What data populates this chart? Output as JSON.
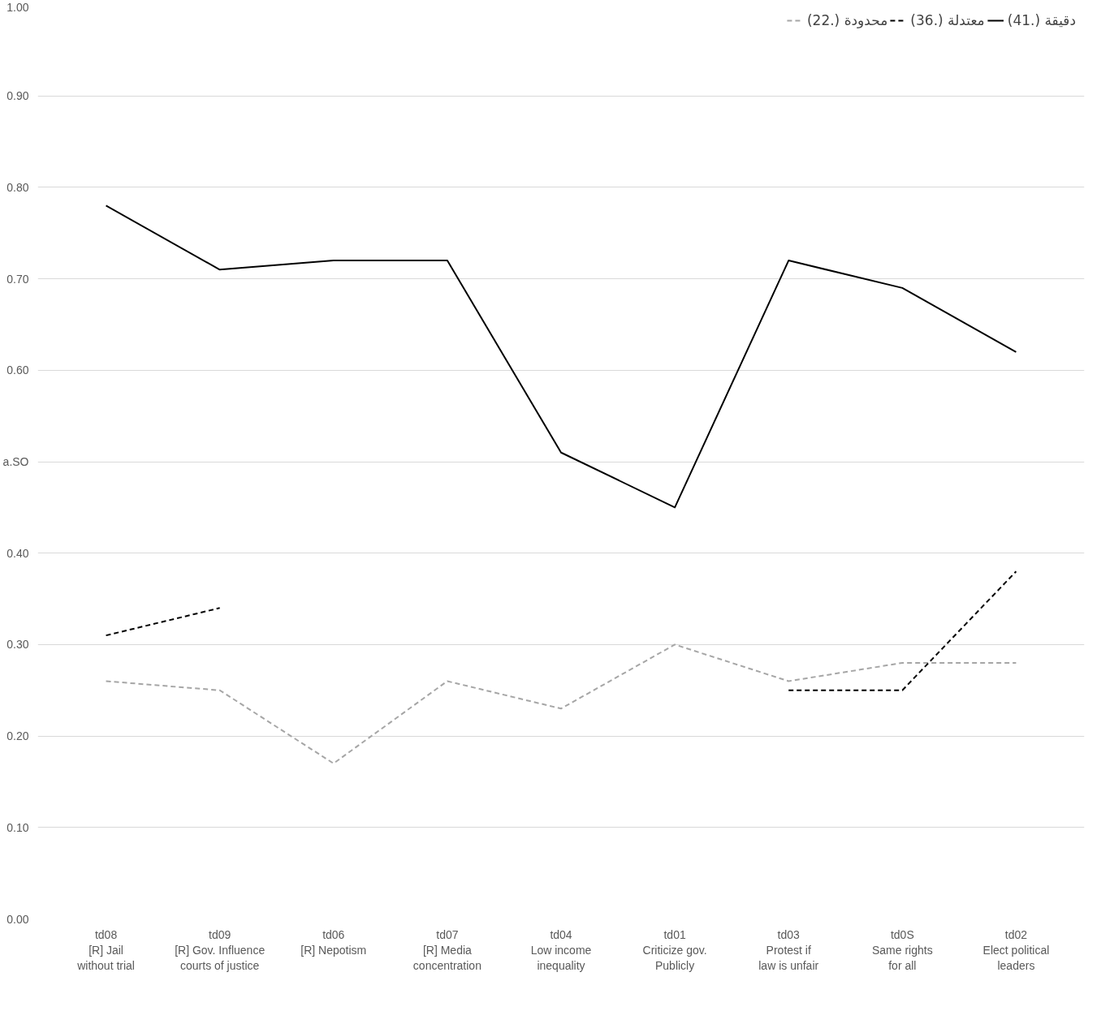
{
  "chart_data": {
    "type": "line",
    "categories": [
      "td08\n[R] Jail\nwithout trial",
      "td09\n[R] Gov. Influence\ncourts of justice",
      "td06\n[R] Nepotism",
      "td07\n[R] Media\nconcentration",
      "td04\nLow income\ninequality",
      "td01\nCriticize gov.\nPublicly",
      "td03\nProtest if\nlaw is unfair",
      "td0S\nSame rights\nfor all",
      "td02\nElect political\nleaders"
    ],
    "series": [
      {
        "name": "محدودة (.22)",
        "color": "#a6a6a6",
        "line_style": "dashed",
        "values": [
          0.26,
          0.25,
          0.17,
          0.26,
          0.23,
          0.3,
          0.26,
          0.28,
          0.28
        ]
      },
      {
        "name": "معتدلة (.36)",
        "color": "#000000",
        "line_style": "dashed",
        "values": [
          0.31,
          0.34,
          null,
          null,
          null,
          null,
          0.25,
          0.25,
          0.38
        ]
      },
      {
        "name": "دقيقة (.41)",
        "color": "#000000",
        "line_style": "solid",
        "values": [
          0.78,
          0.71,
          0.72,
          0.72,
          0.51,
          0.45,
          0.72,
          0.69,
          0.62
        ]
      }
    ],
    "ylim": [
      0,
      1
    ],
    "yticks": [
      {
        "value": 0,
        "label": "0.00"
      },
      {
        "value": 0.1,
        "label": "0.10"
      },
      {
        "value": 0.2,
        "label": "0.20"
      },
      {
        "value": 0.3,
        "label": "0.30"
      },
      {
        "value": 0.4,
        "label": "0.40"
      },
      {
        "value": 0.5,
        "label": "a.SO"
      },
      {
        "value": 0.6,
        "label": "0.60"
      },
      {
        "value": 0.7,
        "label": "0.70"
      },
      {
        "value": 0.8,
        "label": "0.80"
      },
      {
        "value": 0.9,
        "label": "0.90"
      },
      {
        "value": 1,
        "label": "1.00"
      }
    ],
    "grid": "y",
    "legend": "top right",
    "marker": "none"
  }
}
